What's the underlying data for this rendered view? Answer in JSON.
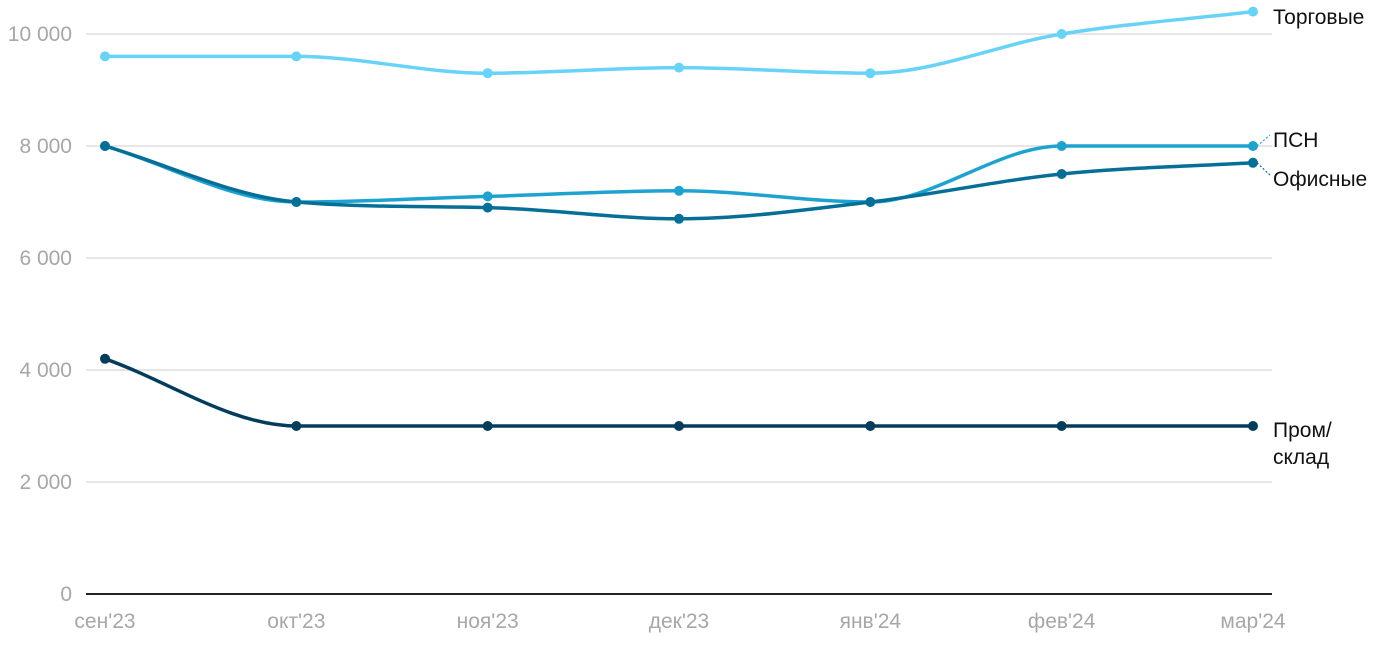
{
  "chart_data": {
    "type": "line",
    "title": "",
    "xlabel": "",
    "ylabel": "",
    "categories": [
      "сен'23",
      "окт'23",
      "ноя'23",
      "дек'23",
      "янв'24",
      "фев'24",
      "мар'24"
    ],
    "ylim": [
      0,
      10400
    ],
    "y_ticks": [
      {
        "value": 0,
        "label": "0"
      },
      {
        "value": 2000,
        "label": "2 000"
      },
      {
        "value": 4000,
        "label": "4 000"
      },
      {
        "value": 6000,
        "label": "6 000"
      },
      {
        "value": 8000,
        "label": "8 000"
      },
      {
        "value": 10000,
        "label": "10 000"
      }
    ],
    "grid": true,
    "legend": "direct labels at right end of lines",
    "series": [
      {
        "name": "Торговые",
        "color": "#67d3f7",
        "values": [
          9600,
          9600,
          9300,
          9400,
          9300,
          10000,
          10400
        ]
      },
      {
        "name": "ПСН",
        "color": "#1ea3d0",
        "values": [
          8000,
          7000,
          7100,
          7200,
          7000,
          8000,
          8000
        ]
      },
      {
        "name": "Офисные",
        "color": "#066f97",
        "values": [
          8000,
          7000,
          6900,
          6700,
          7000,
          7500,
          7700
        ]
      },
      {
        "name": "Пром/\nсклад",
        "color": "#033d5d",
        "values": [
          4200,
          3000,
          3000,
          3000,
          3000,
          3000,
          3000
        ]
      }
    ]
  }
}
